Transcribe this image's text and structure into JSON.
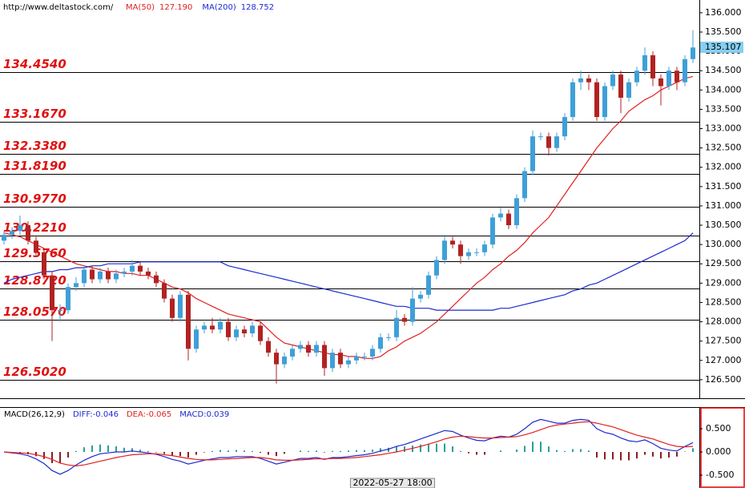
{
  "chart_data": [
    {
      "type": "candlestick",
      "source": "http://www.deltastock.com/",
      "cursor_label": "2022-05-27 18:00",
      "ylim": [
        126.02,
        136.33
      ],
      "yticks": [
        {
          "value": 126.5,
          "label": "126.500"
        },
        {
          "value": 127,
          "label": "127.000"
        },
        {
          "value": 127.5,
          "label": "127.500"
        },
        {
          "value": 128,
          "label": "128.000"
        },
        {
          "value": 128.5,
          "label": "128.500"
        },
        {
          "value": 129,
          "label": "129.000"
        },
        {
          "value": 129.5,
          "label": "129.500"
        },
        {
          "value": 130,
          "label": "130.000"
        },
        {
          "value": 130.5,
          "label": "130.500"
        },
        {
          "value": 131,
          "label": "131.000"
        },
        {
          "value": 131.5,
          "label": "131.500"
        },
        {
          "value": 132,
          "label": "132.000"
        },
        {
          "value": 132.5,
          "label": "132.500"
        },
        {
          "value": 133,
          "label": "133.000"
        },
        {
          "value": 133.5,
          "label": "133.500"
        },
        {
          "value": 134,
          "label": "134.000"
        },
        {
          "value": 134.5,
          "label": "134.500"
        },
        {
          "value": 135,
          "label": "135.000"
        },
        {
          "value": 135.5,
          "label": "135.500"
        },
        {
          "value": 136,
          "label": "136.000"
        }
      ],
      "last_price": 135.107,
      "up_color": "#3f9fd8",
      "down_color": "#b22222",
      "levels": [
        {
          "value": 134.454,
          "label": "134.4540"
        },
        {
          "value": 133.167,
          "label": "133.1670"
        },
        {
          "value": 132.338,
          "label": "132.3380"
        },
        {
          "value": 131.819,
          "label": "131.8190"
        },
        {
          "value": 130.977,
          "label": "130.9770"
        },
        {
          "value": 130.221,
          "label": "130.2210"
        },
        {
          "value": 129.576,
          "label": "129.5760"
        },
        {
          "value": 128.872,
          "label": "128.8720"
        },
        {
          "value": 128.057,
          "label": "128.0570"
        },
        {
          "value": 126.502,
          "label": "126.5020"
        }
      ],
      "open": [
        130.1,
        130.25,
        130.35,
        130.5,
        130.1,
        129.8,
        129.2,
        128.3,
        128.3,
        128.9,
        129.0,
        129.35,
        129.1,
        129.3,
        129.1,
        129.25,
        129.3,
        129.45,
        129.3,
        129.2,
        129.0,
        128.6,
        128.1,
        128.7,
        127.3,
        127.8,
        127.9,
        127.8,
        128.0,
        127.6,
        127.8,
        127.7,
        127.9,
        127.5,
        127.2,
        126.9,
        127.1,
        127.3,
        127.4,
        127.2,
        127.4,
        126.8,
        127.2,
        126.9,
        127.0,
        127.1,
        127.1,
        127.3,
        127.6,
        127.6,
        128.1,
        128.0,
        128.6,
        128.7,
        129.2,
        129.6,
        130.1,
        130.0,
        129.7,
        129.8,
        129.8,
        130.0,
        130.7,
        130.8,
        130.5,
        131.2,
        131.9,
        132.8,
        132.8,
        132.5,
        132.8,
        133.3,
        134.2,
        134.3,
        134.2,
        133.3,
        134.1,
        134.4,
        133.8,
        134.2,
        134.5,
        134.9,
        134.3,
        134.1,
        134.5,
        134.2,
        134.8
      ],
      "high": [
        130.35,
        130.45,
        130.75,
        130.6,
        130.2,
        129.9,
        129.3,
        128.45,
        129.0,
        129.15,
        129.45,
        129.45,
        129.4,
        129.4,
        129.35,
        129.4,
        129.6,
        129.55,
        129.4,
        129.3,
        129.1,
        128.7,
        128.8,
        128.8,
        127.9,
        128.0,
        128.1,
        128.1,
        128.1,
        127.9,
        127.9,
        128.0,
        128.0,
        127.6,
        127.3,
        127.2,
        127.4,
        127.5,
        127.5,
        127.5,
        127.5,
        127.3,
        127.3,
        127.1,
        127.2,
        127.2,
        127.4,
        127.7,
        127.7,
        128.3,
        128.2,
        128.9,
        128.8,
        129.3,
        129.7,
        130.2,
        130.2,
        130.1,
        129.9,
        129.9,
        130.1,
        130.8,
        130.95,
        130.9,
        131.3,
        132.0,
        132.95,
        132.9,
        132.9,
        132.9,
        133.4,
        134.3,
        134.5,
        134.4,
        134.3,
        134.2,
        134.5,
        134.5,
        134.3,
        134.6,
        135.1,
        135.0,
        134.4,
        134.6,
        134.6,
        134.9,
        135.55
      ],
      "low": [
        130.0,
        130.15,
        130.25,
        130.0,
        129.7,
        129.1,
        127.5,
        128.0,
        128.2,
        128.8,
        128.9,
        129.0,
        129.0,
        129.0,
        129.0,
        129.15,
        129.2,
        129.2,
        129.1,
        128.9,
        128.5,
        128.0,
        128.0,
        127.0,
        127.2,
        127.7,
        127.7,
        127.7,
        127.5,
        127.5,
        127.6,
        127.6,
        127.4,
        127.1,
        126.4,
        126.8,
        127.0,
        127.2,
        127.1,
        127.1,
        126.6,
        126.7,
        126.8,
        126.8,
        126.9,
        127.0,
        127.0,
        127.2,
        127.5,
        127.5,
        127.9,
        127.9,
        128.5,
        128.6,
        129.1,
        129.5,
        129.9,
        129.5,
        129.6,
        129.7,
        129.7,
        129.9,
        130.6,
        130.4,
        130.4,
        131.1,
        131.8,
        132.7,
        132.3,
        132.4,
        132.7,
        133.2,
        134.0,
        134.0,
        133.2,
        133.2,
        134.0,
        133.4,
        133.7,
        134.1,
        134.4,
        134.1,
        133.6,
        134.0,
        134.0,
        134.1,
        134.7
      ],
      "close": [
        130.25,
        130.35,
        130.5,
        130.1,
        129.8,
        129.2,
        128.3,
        128.3,
        128.9,
        129.0,
        129.35,
        129.1,
        129.3,
        129.1,
        129.25,
        129.3,
        129.45,
        129.3,
        129.2,
        129.0,
        128.6,
        128.1,
        128.7,
        127.3,
        127.8,
        127.9,
        127.8,
        128.0,
        127.6,
        127.8,
        127.7,
        127.9,
        127.5,
        127.2,
        126.9,
        127.1,
        127.3,
        127.4,
        127.2,
        127.4,
        126.8,
        127.2,
        126.9,
        127.0,
        127.1,
        127.1,
        127.3,
        127.6,
        127.6,
        128.1,
        128.0,
        128.6,
        128.7,
        129.2,
        129.6,
        130.1,
        130.0,
        129.7,
        129.8,
        129.8,
        130.0,
        130.7,
        130.8,
        130.5,
        131.2,
        131.9,
        132.8,
        132.8,
        132.5,
        132.8,
        133.3,
        134.2,
        134.3,
        134.2,
        133.3,
        134.1,
        134.4,
        133.8,
        134.2,
        134.5,
        134.9,
        134.3,
        134.1,
        134.5,
        134.2,
        134.8,
        135.1
      ],
      "lines": [
        {
          "name": "MA(50)",
          "color": "#e02020",
          "last": {
            "value": 127.19,
            "label": "127.190"
          },
          "values": [
            130.3,
            130.25,
            130.2,
            130.1,
            130.0,
            129.9,
            129.8,
            129.7,
            129.6,
            129.5,
            129.45,
            129.4,
            129.35,
            129.3,
            129.3,
            129.25,
            129.25,
            129.2,
            129.2,
            129.1,
            129.0,
            128.9,
            128.85,
            128.75,
            128.6,
            128.5,
            128.4,
            128.3,
            128.2,
            128.15,
            128.1,
            128.05,
            128.0,
            127.8,
            127.6,
            127.45,
            127.4,
            127.35,
            127.3,
            127.25,
            127.2,
            127.15,
            127.15,
            127.1,
            127.1,
            127.05,
            127.05,
            127.1,
            127.25,
            127.35,
            127.5,
            127.6,
            127.7,
            127.85,
            128.0,
            128.2,
            128.4,
            128.6,
            128.8,
            129.0,
            129.15,
            129.35,
            129.5,
            129.7,
            129.85,
            130.05,
            130.3,
            130.5,
            130.7,
            131.0,
            131.3,
            131.6,
            131.9,
            132.2,
            132.5,
            132.75,
            133.0,
            133.2,
            133.45,
            133.6,
            133.75,
            133.85,
            134.0,
            134.1,
            134.2,
            134.3,
            134.35
          ]
        },
        {
          "name": "MA(200)",
          "color": "#1c2ad0",
          "last": {
            "value": 128.752,
            "label": "128.752"
          },
          "values": [
            129.0,
            129.1,
            129.15,
            129.2,
            129.25,
            129.3,
            129.3,
            129.35,
            129.35,
            129.4,
            129.4,
            129.45,
            129.45,
            129.5,
            129.5,
            129.5,
            129.5,
            129.55,
            129.55,
            129.55,
            129.55,
            129.55,
            129.55,
            129.55,
            129.55,
            129.55,
            129.55,
            129.55,
            129.45,
            129.4,
            129.35,
            129.3,
            129.25,
            129.2,
            129.15,
            129.1,
            129.05,
            129.0,
            128.95,
            128.9,
            128.85,
            128.8,
            128.75,
            128.7,
            128.65,
            128.6,
            128.55,
            128.5,
            128.45,
            128.4,
            128.4,
            128.35,
            128.35,
            128.35,
            128.3,
            128.3,
            128.3,
            128.3,
            128.3,
            128.3,
            128.3,
            128.3,
            128.35,
            128.35,
            128.4,
            128.45,
            128.5,
            128.55,
            128.6,
            128.65,
            128.7,
            128.8,
            128.85,
            128.95,
            129.0,
            129.1,
            129.2,
            129.3,
            129.4,
            129.5,
            129.6,
            129.7,
            129.8,
            129.9,
            130.0,
            130.1,
            130.3
          ]
        }
      ]
    },
    {
      "type": "macd",
      "title": "MACD(26,12,9)",
      "stats": [
        {
          "text": "DIFF:-0.046",
          "color": "#1c2ad0"
        },
        {
          "text": "DEA:-0.065",
          "color": "#e02020"
        },
        {
          "text": "MACD:0.039",
          "color": "#1c2ad0"
        }
      ],
      "ylim": [
        -0.776,
        0.966
      ],
      "yticks": [
        {
          "value": 0.5,
          "label": "0.500"
        },
        {
          "value": 0,
          "label": "0.000"
        },
        {
          "value": -0.5,
          "label": "-0.500"
        }
      ],
      "up_color": "#2a9d9d",
      "down_color": "#8b1e1e",
      "histogram": [
        0.0,
        -0.01,
        -0.02,
        -0.05,
        -0.09,
        -0.15,
        -0.24,
        -0.24,
        -0.12,
        0.02,
        0.1,
        0.14,
        0.16,
        0.14,
        0.12,
        0.09,
        0.08,
        0.05,
        0.02,
        -0.01,
        -0.04,
        -0.08,
        -0.09,
        -0.12,
        -0.06,
        -0.01,
        0.02,
        0.04,
        0.03,
        0.04,
        0.03,
        0.02,
        -0.02,
        -0.06,
        -0.09,
        -0.04,
        0.0,
        0.03,
        0.02,
        0.03,
        -0.01,
        0.02,
        0.02,
        0.03,
        0.04,
        0.04,
        0.05,
        0.08,
        0.09,
        0.12,
        0.12,
        0.14,
        0.16,
        0.17,
        0.18,
        0.18,
        0.12,
        0.02,
        -0.03,
        -0.06,
        -0.06,
        0.0,
        0.03,
        0.0,
        0.05,
        0.13,
        0.22,
        0.22,
        0.12,
        0.04,
        0.02,
        0.06,
        0.06,
        0.03,
        -0.12,
        -0.16,
        -0.16,
        -0.18,
        -0.18,
        -0.14,
        -0.06,
        -0.1,
        -0.14,
        -0.12,
        -0.1,
        0.01,
        0.08
      ],
      "series": [
        {
          "name": "DIFF",
          "color": "#1c2ad0",
          "values": [
            0.0,
            -0.02,
            -0.04,
            -0.08,
            -0.15,
            -0.25,
            -0.4,
            -0.48,
            -0.4,
            -0.28,
            -0.18,
            -0.1,
            -0.04,
            -0.02,
            0.0,
            0.0,
            0.02,
            0.0,
            -0.02,
            -0.05,
            -0.1,
            -0.16,
            -0.2,
            -0.26,
            -0.22,
            -0.18,
            -0.15,
            -0.12,
            -0.12,
            -0.1,
            -0.1,
            -0.1,
            -0.14,
            -0.2,
            -0.26,
            -0.22,
            -0.18,
            -0.14,
            -0.14,
            -0.12,
            -0.16,
            -0.12,
            -0.12,
            -0.1,
            -0.08,
            -0.06,
            -0.03,
            0.02,
            0.06,
            0.12,
            0.16,
            0.22,
            0.28,
            0.34,
            0.4,
            0.46,
            0.44,
            0.36,
            0.3,
            0.25,
            0.24,
            0.3,
            0.34,
            0.32,
            0.38,
            0.5,
            0.64,
            0.7,
            0.66,
            0.62,
            0.62,
            0.68,
            0.7,
            0.68,
            0.5,
            0.42,
            0.38,
            0.3,
            0.24,
            0.22,
            0.26,
            0.18,
            0.08,
            0.04,
            0.02,
            0.12,
            0.2
          ]
        },
        {
          "name": "DEA",
          "color": "#e02020",
          "values": [
            0.0,
            -0.01,
            -0.02,
            -0.03,
            -0.06,
            -0.1,
            -0.16,
            -0.24,
            -0.28,
            -0.3,
            -0.28,
            -0.24,
            -0.2,
            -0.16,
            -0.12,
            -0.09,
            -0.06,
            -0.05,
            -0.04,
            -0.04,
            -0.06,
            -0.08,
            -0.11,
            -0.14,
            -0.16,
            -0.17,
            -0.17,
            -0.16,
            -0.15,
            -0.14,
            -0.13,
            -0.12,
            -0.12,
            -0.14,
            -0.17,
            -0.18,
            -0.18,
            -0.17,
            -0.16,
            -0.15,
            -0.15,
            -0.14,
            -0.14,
            -0.13,
            -0.12,
            -0.1,
            -0.08,
            -0.06,
            -0.03,
            0.0,
            0.04,
            0.08,
            0.12,
            0.17,
            0.22,
            0.28,
            0.32,
            0.34,
            0.33,
            0.31,
            0.3,
            0.3,
            0.31,
            0.32,
            0.33,
            0.37,
            0.42,
            0.48,
            0.54,
            0.58,
            0.6,
            0.62,
            0.64,
            0.65,
            0.62,
            0.58,
            0.54,
            0.48,
            0.42,
            0.36,
            0.32,
            0.28,
            0.22,
            0.16,
            0.12,
            0.11,
            0.12
          ]
        }
      ]
    }
  ]
}
